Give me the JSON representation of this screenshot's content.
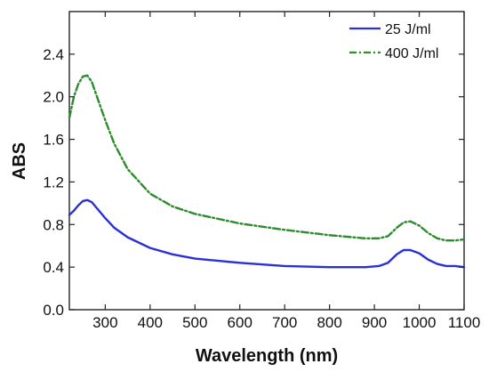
{
  "chart_data": {
    "type": "line",
    "title": "",
    "xlabel": "Wavelength (nm)",
    "ylabel": "ABS",
    "xlim": [
      220,
      1100
    ],
    "ylim": [
      0.0,
      2.8
    ],
    "xticks": [
      300,
      400,
      500,
      600,
      700,
      800,
      900,
      1000,
      1100
    ],
    "yticks": [
      0.0,
      0.4,
      0.8,
      1.2,
      1.6,
      2.0,
      2.4
    ],
    "xtick_labels": [
      "300",
      "400",
      "500",
      "600",
      "700",
      "800",
      "900",
      "1000",
      "1100"
    ],
    "ytick_labels": [
      "0.0",
      "0.4",
      "0.8",
      "1.2",
      "1.6",
      "2.0",
      "2.4"
    ],
    "grid": false,
    "legend_position": "top-right",
    "series": [
      {
        "name": "25 J/ml",
        "color": "#2a2fd6",
        "line_style": "solid",
        "x": [
          220,
          230,
          240,
          250,
          260,
          270,
          280,
          300,
          320,
          350,
          400,
          450,
          500,
          600,
          700,
          800,
          880,
          910,
          930,
          950,
          965,
          980,
          1000,
          1020,
          1040,
          1060,
          1080,
          1100
        ],
        "y": [
          0.89,
          0.93,
          0.98,
          1.02,
          1.03,
          1.01,
          0.96,
          0.86,
          0.77,
          0.68,
          0.58,
          0.52,
          0.48,
          0.44,
          0.41,
          0.4,
          0.4,
          0.41,
          0.44,
          0.52,
          0.56,
          0.56,
          0.53,
          0.47,
          0.43,
          0.41,
          0.41,
          0.4
        ]
      },
      {
        "name": "400 J/ml",
        "color": "#2e8b2e",
        "line_style": "dash-dot",
        "x": [
          220,
          230,
          240,
          250,
          260,
          270,
          280,
          300,
          320,
          350,
          400,
          450,
          500,
          600,
          700,
          800,
          880,
          910,
          930,
          950,
          965,
          980,
          1000,
          1020,
          1040,
          1060,
          1080,
          1100
        ],
        "y": [
          1.8,
          2.0,
          2.12,
          2.19,
          2.2,
          2.14,
          2.02,
          1.78,
          1.56,
          1.32,
          1.09,
          0.97,
          0.9,
          0.81,
          0.75,
          0.7,
          0.67,
          0.67,
          0.69,
          0.77,
          0.82,
          0.83,
          0.79,
          0.72,
          0.67,
          0.65,
          0.65,
          0.66
        ]
      }
    ]
  }
}
